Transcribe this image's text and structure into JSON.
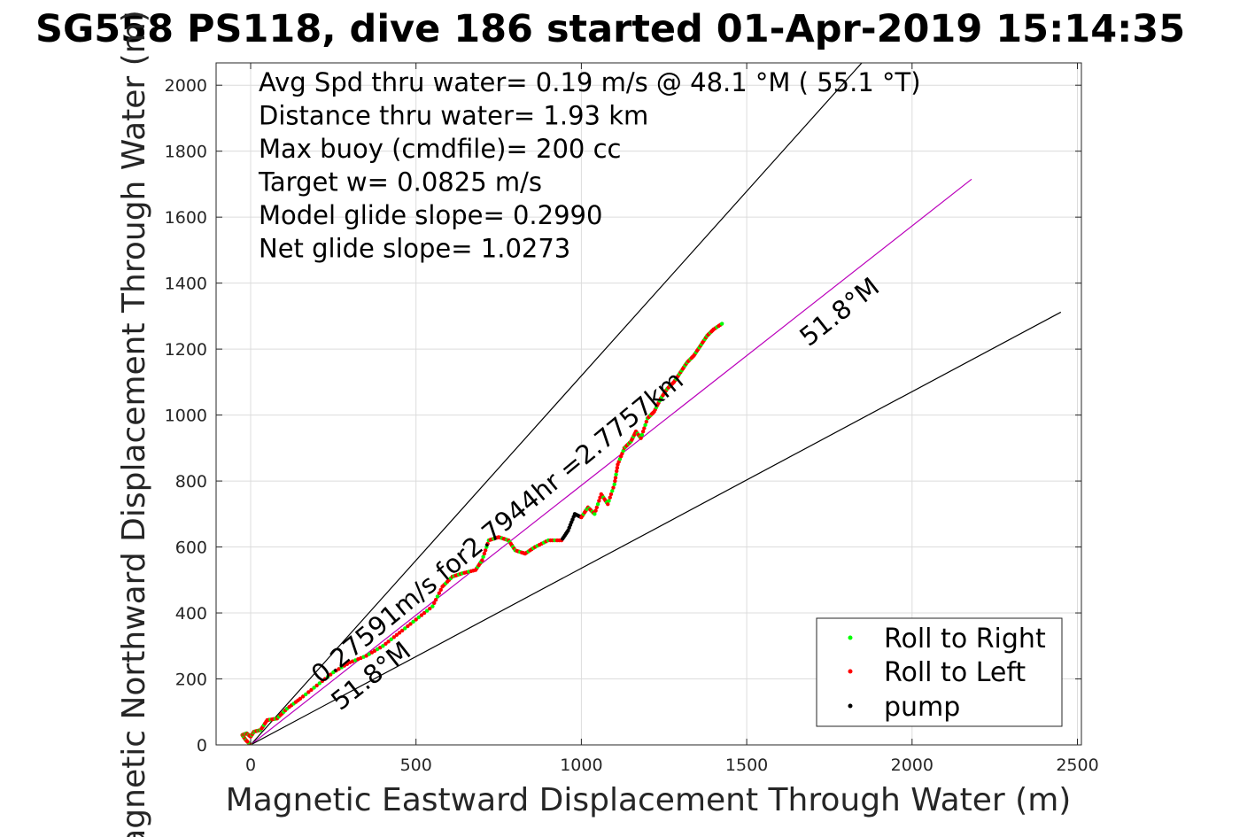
{
  "chart_data": {
    "type": "line",
    "title": "SG558 PS118, dive 186 started 01-Apr-2019 15:14:35",
    "xlabel": "Magnetic Eastward Displacement Through Water (m)",
    "ylabel": "Magnetic Northward Displacement Through Water (m)",
    "xlim": [
      -100,
      2510
    ],
    "ylim": [
      0,
      2070
    ],
    "xticks": [
      0,
      500,
      1000,
      1500,
      2000,
      2500
    ],
    "yticks": [
      0,
      200,
      400,
      600,
      800,
      1000,
      1200,
      1400,
      1600,
      1800,
      2000
    ],
    "grid": true,
    "info_lines": [
      "Avg Spd thru water=  0.19 m/s @  48.1 °M ( 55.1 °T)",
      "Distance thru water=  1.93 km",
      "Max buoy (cmdfile)= 200 cc",
      "Target w= 0.0825 m/s",
      "Model glide slope= 0.2990",
      "Net glide slope= 1.0273"
    ],
    "annotations": {
      "speed_line_label": "0.27591m/s for2.7944hr =2.7757km",
      "upper_heading_label": "51.8°M",
      "lower_heading_label": "51.8°M"
    },
    "reference_lines": [
      {
        "name": "upper bound",
        "color": "#000000",
        "x": [
          0,
          1850
        ],
        "y": [
          0,
          2070
        ]
      },
      {
        "name": "heading",
        "color": "#bb00bb",
        "x": [
          0,
          2180
        ],
        "y": [
          0,
          1715
        ]
      },
      {
        "name": "lower bound",
        "color": "#000000",
        "x": [
          0,
          2450
        ],
        "y": [
          0,
          1312
        ]
      }
    ],
    "track": {
      "color": "#0000ff",
      "x": [
        0,
        -15,
        -25,
        -12,
        0,
        10,
        30,
        50,
        80,
        110,
        150,
        200,
        250,
        300,
        350,
        400,
        450,
        500,
        550,
        580,
        610,
        640,
        680,
        700,
        720,
        750,
        780,
        800,
        830,
        860,
        900,
        940,
        960,
        980,
        1000,
        1020,
        1040,
        1060,
        1080,
        1100,
        1110,
        1130,
        1150,
        1165,
        1180,
        1200,
        1220,
        1240,
        1260,
        1280,
        1300,
        1320,
        1340,
        1360,
        1380,
        1400,
        1430
      ],
      "y": [
        0,
        15,
        30,
        35,
        25,
        40,
        45,
        75,
        80,
        110,
        140,
        180,
        220,
        250,
        270,
        300,
        340,
        380,
        420,
        480,
        510,
        520,
        530,
        560,
        620,
        630,
        620,
        590,
        580,
        600,
        620,
        620,
        650,
        700,
        690,
        720,
        700,
        760,
        730,
        790,
        850,
        900,
        920,
        950,
        930,
        990,
        1010,
        1050,
        1080,
        1100,
        1130,
        1160,
        1180,
        1210,
        1240,
        1260,
        1280
      ]
    },
    "legend": {
      "position": "bottom-right",
      "entries": [
        {
          "label": "Roll to Right",
          "color": "#00ff00"
        },
        {
          "label": "Roll to Left",
          "color": "#ff0000"
        },
        {
          "label": "pump",
          "color": "#000000"
        }
      ]
    }
  }
}
